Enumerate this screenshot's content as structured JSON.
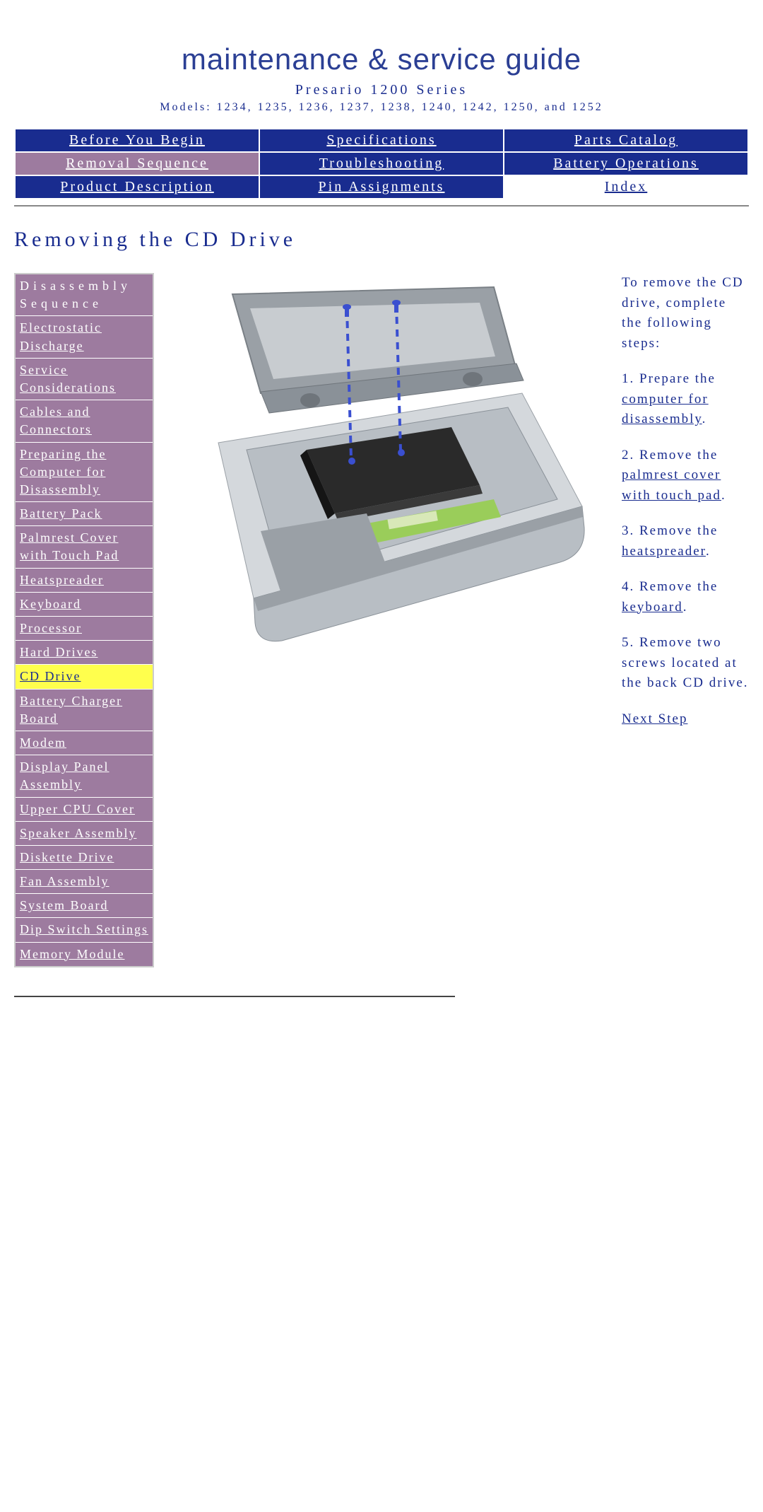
{
  "header": {
    "title": "maintenance & service guide",
    "title_color": "#2b3f94",
    "series": "Presario 1200 Series",
    "models": "Models: 1234, 1235, 1236, 1237, 1238, 1240, 1242, 1250, and 1252",
    "subtitle_color": "#192c8f"
  },
  "topnav": {
    "rows": [
      [
        {
          "label": "Before You Begin",
          "bg": "blue"
        },
        {
          "label": "Specifications",
          "bg": "blue"
        },
        {
          "label": "Parts Catalog",
          "bg": "blue"
        }
      ],
      [
        {
          "label": "Removal Sequence",
          "bg": "purple"
        },
        {
          "label": "Troubleshooting",
          "bg": "blue"
        },
        {
          "label": "Battery Operations",
          "bg": "blue"
        }
      ],
      [
        {
          "label": "Product Description",
          "bg": "blue"
        },
        {
          "label": "Pin Assignments",
          "bg": "blue"
        },
        {
          "label": "Index",
          "bg": "white"
        }
      ]
    ],
    "colors": {
      "blue_bg": "#192c8f",
      "purple_bg": "#9d7b9f",
      "white_bg": "#ffffff",
      "link_on_dark": "#ffffff",
      "link_on_white": "#192c8f"
    }
  },
  "page": {
    "title": "Removing the CD Drive",
    "title_color": "#192c8f"
  },
  "sidebar": {
    "header": "Disassembly Sequence",
    "items": [
      {
        "label": "Electrostatic Discharge",
        "active": false
      },
      {
        "label": "Service Considerations",
        "active": false
      },
      {
        "label": "Cables and Connectors",
        "active": false
      },
      {
        "label": "Preparing the Computer for Disassembly",
        "active": false
      },
      {
        "label": "Battery Pack",
        "active": false
      },
      {
        "label": "Palmrest Cover with Touch Pad",
        "active": false
      },
      {
        "label": "Heatspreader",
        "active": false
      },
      {
        "label": "Keyboard",
        "active": false
      },
      {
        "label": "Processor",
        "active": false
      },
      {
        "label": "Hard Drives",
        "active": false
      },
      {
        "label": "CD Drive",
        "active": true
      },
      {
        "label": "Battery Charger Board",
        "active": false
      },
      {
        "label": "Modem",
        "active": false
      },
      {
        "label": "Display Panel Assembly",
        "active": false
      },
      {
        "label": "Upper CPU Cover",
        "active": false
      },
      {
        "label": "Speaker Assembly",
        "active": false
      },
      {
        "label": "Diskette Drive",
        "active": false
      },
      {
        "label": "Fan Assembly",
        "active": false
      },
      {
        "label": "System Board",
        "active": false
      },
      {
        "label": "Dip Switch Settings",
        "active": false
      },
      {
        "label": "Memory Module",
        "active": false
      }
    ],
    "colors": {
      "item_bg": "#9d7b9f",
      "active_bg": "#ffff4d",
      "link": "#ffffff",
      "active_link": "#192c8f"
    }
  },
  "instructions": {
    "intro": "To remove the CD drive, complete the following steps:",
    "steps": [
      {
        "num": "1.",
        "before": "Prepare the ",
        "link": "computer for disassembly",
        "after": "."
      },
      {
        "num": "2.",
        "before": "Remove the ",
        "link": "palmrest cover with touch pad",
        "after": "."
      },
      {
        "num": "3.",
        "before": "Remove the ",
        "link": "heatspreader",
        "after": "."
      },
      {
        "num": "4.",
        "before": "Remove the ",
        "link": "keyboard",
        "after": "."
      },
      {
        "num": "5.",
        "before": "Remove two screws located at the back CD drive.",
        "link": "",
        "after": ""
      }
    ],
    "next": "Next Step",
    "text_color": "#192c8f"
  },
  "figure": {
    "description": "laptop-cd-drive-removal-illustration",
    "colors": {
      "chassis": "#b8bec4",
      "chassis_dark": "#8a9198",
      "chassis_light": "#d4d8dc",
      "drive": "#2a2a2a",
      "board": "#9acd5a",
      "screw_line": "#3a4fd0",
      "screen_bezel": "#9aa0a6"
    }
  }
}
